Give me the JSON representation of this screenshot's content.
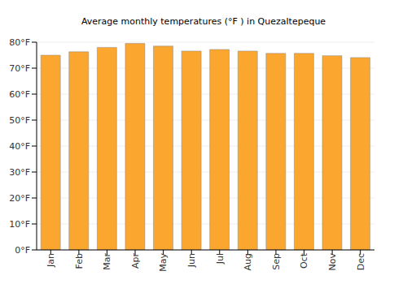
{
  "chart_data": {
    "type": "bar",
    "title": "Average monthly temperatures (°F ) in Quezaltepeque",
    "categories": [
      "Jan",
      "Feb",
      "Mar",
      "Apr",
      "May",
      "Jun",
      "Jul",
      "Aug",
      "Sep",
      "Oct",
      "Nov",
      "Dec"
    ],
    "values": [
      75.0,
      76.3,
      78.0,
      79.5,
      78.5,
      76.6,
      77.2,
      76.6,
      75.7,
      75.7,
      74.8,
      74.1
    ],
    "color": "#fba62e",
    "ylim": [
      0,
      80
    ],
    "yticks": [
      {
        "value": 0,
        "label": "0°F"
      },
      {
        "value": 10,
        "label": "10°F"
      },
      {
        "value": 20,
        "label": "20°F"
      },
      {
        "value": 30,
        "label": "30°F"
      },
      {
        "value": 40,
        "label": "40°F"
      },
      {
        "value": 50,
        "label": "50°F"
      },
      {
        "value": 60,
        "label": "60°F"
      },
      {
        "value": 70,
        "label": "70°F"
      },
      {
        "value": 80,
        "label": "80°F"
      }
    ],
    "grid": true
  }
}
